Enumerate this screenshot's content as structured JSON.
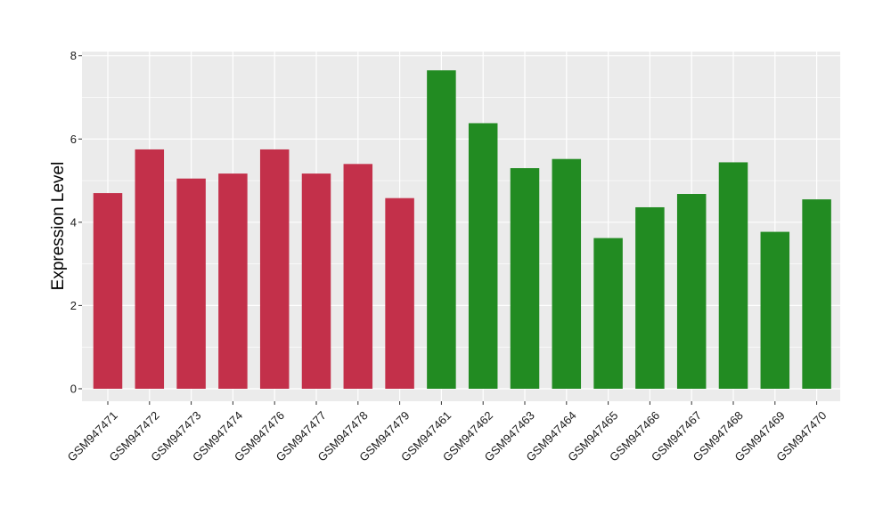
{
  "chart_data": {
    "type": "bar",
    "title": "",
    "xlabel": "",
    "ylabel": "Expression Level",
    "ylim": [
      -0.3,
      8.1
    ],
    "yticks": [
      0,
      2,
      4,
      6,
      8
    ],
    "grid": true,
    "legend": "none",
    "categories": [
      "GSM947471",
      "GSM947472",
      "GSM947473",
      "GSM947474",
      "GSM947476",
      "GSM947477",
      "GSM947478",
      "GSM947479",
      "GSM947461",
      "GSM947462",
      "GSM947463",
      "GSM947464",
      "GSM947465",
      "GSM947466",
      "GSM947467",
      "GSM947468",
      "GSM947469",
      "GSM947470"
    ],
    "values": [
      4.7,
      5.75,
      5.05,
      5.17,
      5.75,
      5.17,
      5.4,
      4.58,
      7.65,
      6.38,
      5.3,
      5.52,
      3.62,
      4.36,
      4.68,
      5.44,
      3.77,
      4.55
    ],
    "groups": [
      "red",
      "red",
      "red",
      "red",
      "red",
      "red",
      "red",
      "red",
      "green",
      "green",
      "green",
      "green",
      "green",
      "green",
      "green",
      "green",
      "green",
      "green"
    ],
    "colors": {
      "red": "#C3304A",
      "green": "#228B22"
    },
    "panel_background": "#EBEBEB",
    "grid_color": "#FFFFFF"
  }
}
